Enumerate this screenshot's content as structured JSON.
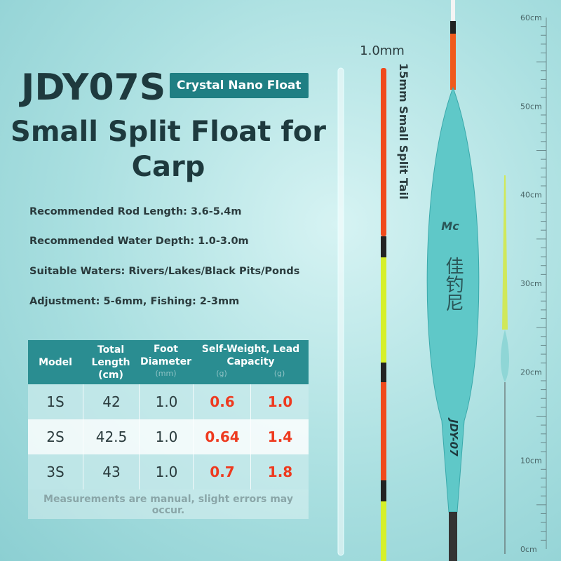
{
  "header": {
    "model": "JDY07S",
    "badge": "Crystal Nano Float",
    "title": "Small Split Float for Carp"
  },
  "specs": [
    "Recommended Rod Length: 3.6-5.4m",
    "Recommended Water Depth: 1.0-3.0m",
    "Suitable Waters: Rivers/Lakes/Black Pits/Ponds",
    "Adjustment: 5-6mm, Fishing: 2-3mm"
  ],
  "table": {
    "headers": [
      "Model",
      "Total Length (cm)",
      "Foot Diameter",
      "(mm)",
      "Self-Weight, Lead Capacity",
      "(g)",
      "(g)"
    ],
    "rows": [
      [
        "1S",
        "42",
        "1.0",
        "0.6",
        "1.0"
      ],
      [
        "2S",
        "42.5",
        "1.0",
        "0.64",
        "1.4"
      ],
      [
        "3S",
        "43",
        "1.0",
        "0.7",
        "1.8"
      ]
    ],
    "note": "Measurements are manual, slight errors may occur."
  },
  "product": {
    "tail_diameter": "1.0mm",
    "tail_label": "15mm Small Split Tail",
    "brand": "Mc",
    "chinese": "佳钓尼",
    "body_text": "JDY-07",
    "ruler": [
      "60cm",
      "50cm",
      "40cm",
      "30cm",
      "20cm",
      "10cm",
      "0cm"
    ]
  }
}
